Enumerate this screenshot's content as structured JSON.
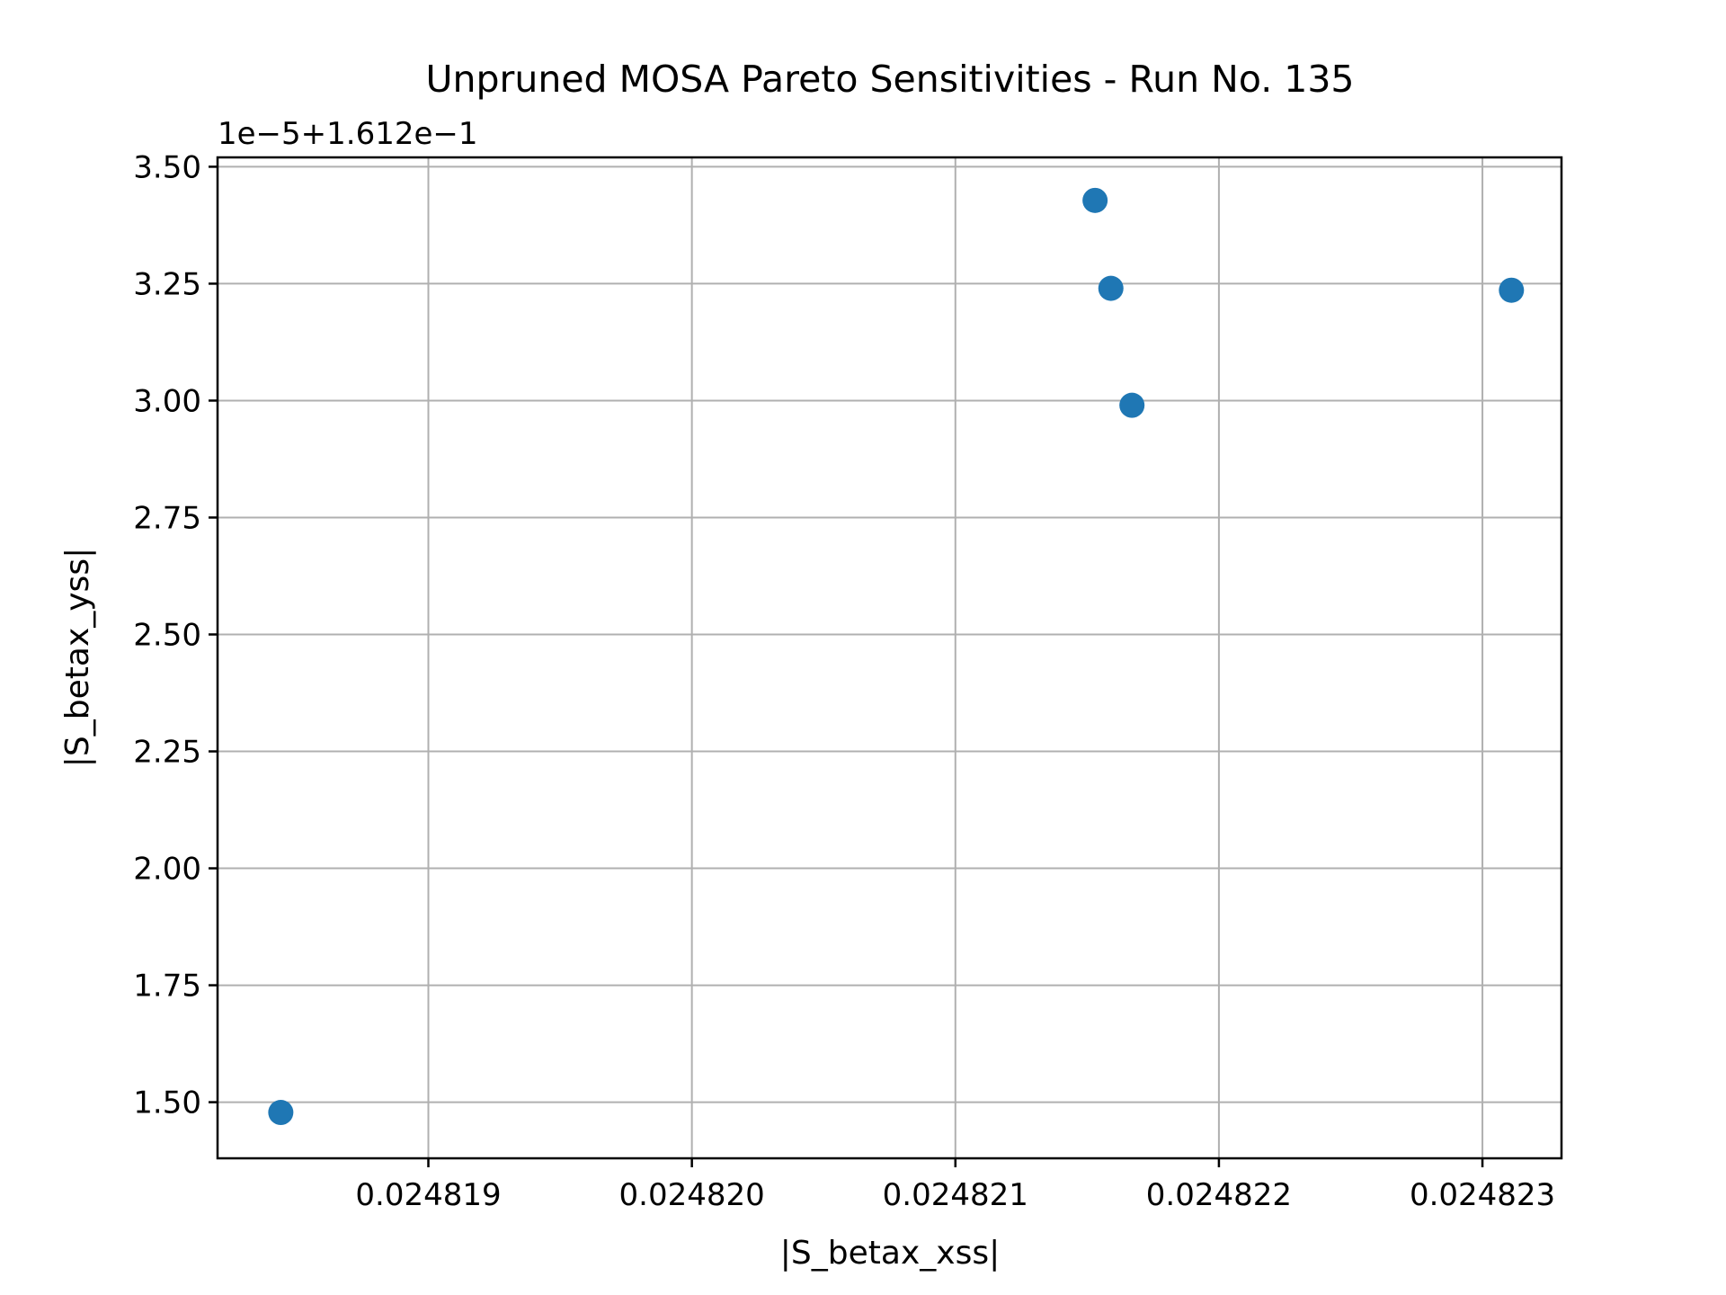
{
  "chart_data": {
    "type": "scatter",
    "title": "Unpruned MOSA Pareto Sensitivities - Run No. 135",
    "xlabel": "|S_betax_xss|",
    "ylabel": "|S_betax_yss|",
    "y_offset_label": "1e−5+1.612e−1",
    "x_ticks": [
      0.024819,
      0.02482,
      0.024821,
      0.024822,
      0.024823
    ],
    "x_tick_labels": [
      "0.024819",
      "0.024820",
      "0.024821",
      "0.024822",
      "0.024823"
    ],
    "y_ticks": [
      1.5,
      1.75,
      2.0,
      2.25,
      2.5,
      2.75,
      3.0,
      3.25,
      3.5
    ],
    "y_tick_labels": [
      "1.50",
      "1.75",
      "2.00",
      "2.25",
      "2.50",
      "2.75",
      "3.00",
      "3.25",
      "3.50"
    ],
    "xlim": [
      0.0248182,
      0.0248233
    ],
    "ylim": [
      1.38,
      3.52
    ],
    "grid": true,
    "marker_color": "#1f77b4",
    "points": [
      {
        "x": 0.02481844,
        "y": 1.478
      },
      {
        "x": 0.02482153,
        "y": 3.428
      },
      {
        "x": 0.02482159,
        "y": 3.24
      },
      {
        "x": 0.02482167,
        "y": 2.99
      },
      {
        "x": 0.02482311,
        "y": 3.236
      }
    ]
  }
}
